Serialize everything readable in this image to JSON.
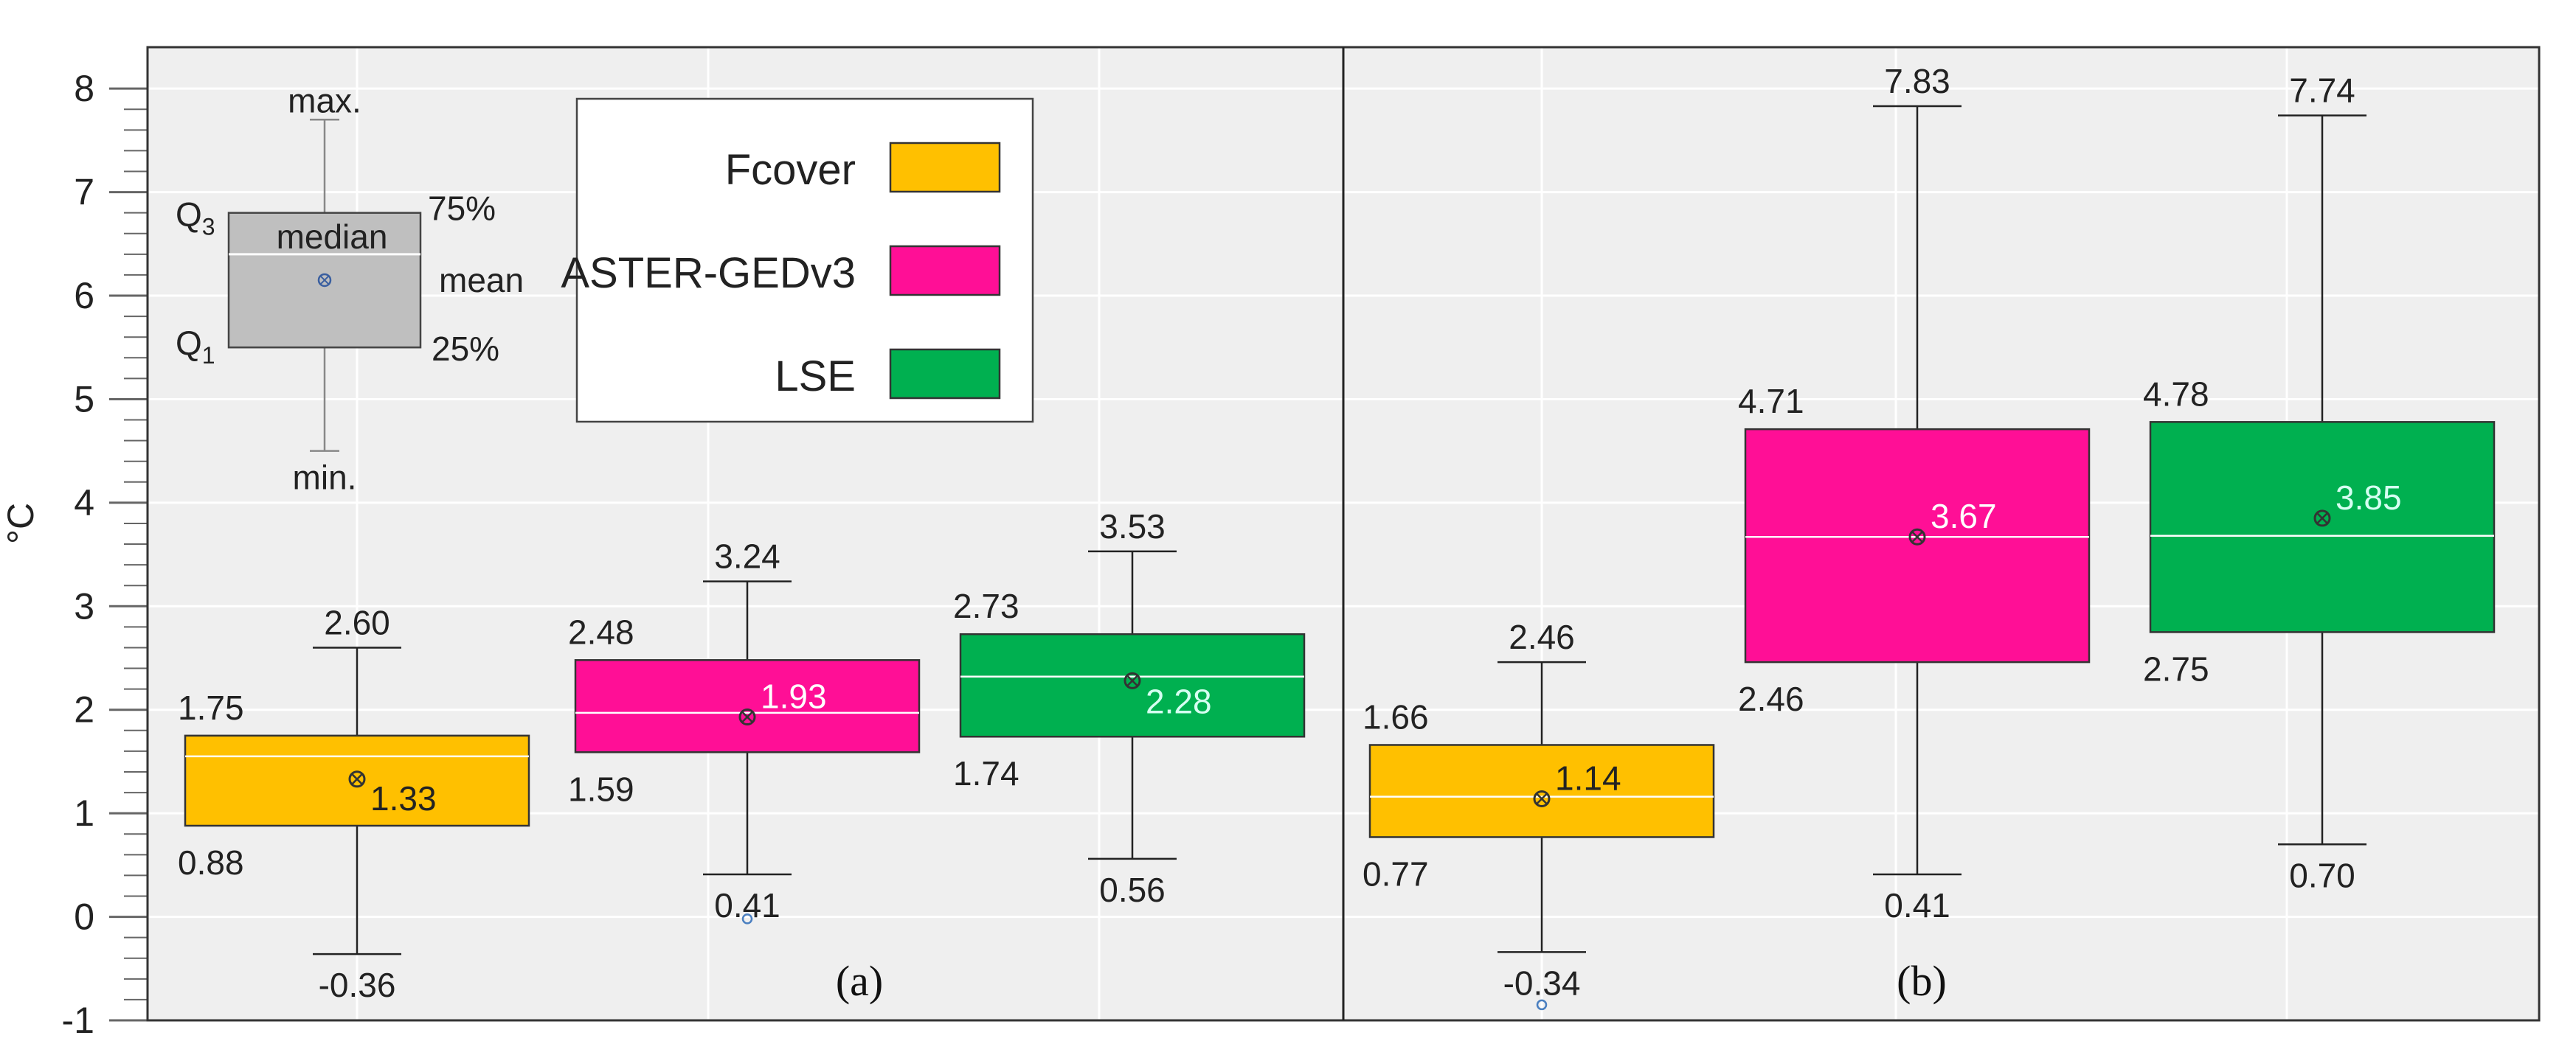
{
  "chart_data": {
    "type": "box",
    "ylabel": "°C",
    "ylim": [
      -1,
      8.4
    ],
    "yticks": [
      -1,
      0,
      1,
      2,
      3,
      4,
      5,
      6,
      7,
      8
    ],
    "grid": true,
    "legend_position": "top-left",
    "colors": {
      "Fcover": "#ffc000",
      "ASTER-GEDv3": "#ff0f96",
      "LSE": "#00b050"
    },
    "series_names": [
      "Fcover",
      "ASTER-GEDv3",
      "LSE"
    ],
    "panels": [
      {
        "label": "(a)",
        "boxes": [
          {
            "series": "Fcover",
            "min": -0.36,
            "q1": 0.88,
            "median": 1.55,
            "q3": 1.75,
            "max": 2.6,
            "mean": 1.33,
            "outliers": [],
            "labels": {
              "min": "-0.36",
              "q1": "0.88",
              "q3": "1.75",
              "max": "2.60",
              "mean": "1.33"
            }
          },
          {
            "series": "ASTER-GEDv3",
            "min": 0.41,
            "q1": 1.59,
            "median": 1.97,
            "q3": 2.48,
            "max": 3.24,
            "mean": 1.93,
            "outliers": [
              -0.02
            ],
            "labels": {
              "min": "0.41",
              "q1": "1.59",
              "q3": "2.48",
              "max": "3.24",
              "mean": "1.93"
            }
          },
          {
            "series": "LSE",
            "min": 0.56,
            "q1": 1.74,
            "median": 2.32,
            "q3": 2.73,
            "max": 3.53,
            "mean": 2.28,
            "outliers": [],
            "labels": {
              "min": "0.56",
              "q1": "1.74",
              "q3": "2.73",
              "max": "3.53",
              "mean": "2.28"
            }
          }
        ]
      },
      {
        "label": "(b)",
        "boxes": [
          {
            "series": "Fcover",
            "min": -0.34,
            "q1": 0.77,
            "median": 1.16,
            "q3": 1.66,
            "max": 2.46,
            "mean": 1.14,
            "outliers": [
              -0.85
            ],
            "labels": {
              "min": "-0.34",
              "q1": "0.77",
              "q3": "1.66",
              "max": "2.46",
              "mean": "1.14"
            }
          },
          {
            "series": "ASTER-GEDv3",
            "min": 0.41,
            "q1": 2.46,
            "median": 3.67,
            "q3": 4.71,
            "max": 7.83,
            "mean": 3.67,
            "outliers": [],
            "labels": {
              "min": "0.41",
              "q1": "2.46",
              "q3": "4.71",
              "max": "7.83",
              "mean": "3.67"
            }
          },
          {
            "series": "LSE",
            "min": 0.7,
            "q1": 2.75,
            "median": 3.68,
            "q3": 4.78,
            "max": 7.74,
            "mean": 3.85,
            "outliers": [],
            "labels": {
              "min": "0.70",
              "q1": "2.75",
              "q3": "4.78",
              "max": "7.74",
              "mean": "3.85"
            }
          }
        ]
      }
    ],
    "key": {
      "min": 4.5,
      "q1": 5.5,
      "median": 6.4,
      "q3": 6.8,
      "max": 7.7,
      "mean": 6.15,
      "labels": {
        "max": "max.",
        "min": "min.",
        "median": "median",
        "mean": "mean",
        "q3": "Q",
        "q3_sub": "3",
        "q1": "Q",
        "q1_sub": "1",
        "p75": "75%",
        "p25": "25%"
      }
    }
  }
}
